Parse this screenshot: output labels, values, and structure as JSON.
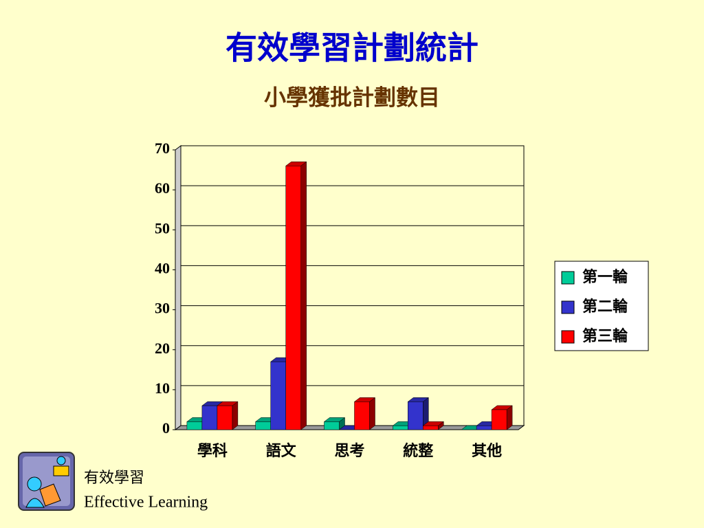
{
  "chart_data": {
    "type": "bar3d",
    "title": "有效學習計劃統計",
    "subtitle": "小學獲批計劃數目",
    "categories": [
      "學科",
      "語文",
      "思考",
      "統整",
      "其他"
    ],
    "series": [
      {
        "name": "第一輪",
        "color": "#00cc99",
        "values": [
          2,
          2,
          2,
          1,
          0
        ]
      },
      {
        "name": "第二輪",
        "color": "#3333cc",
        "values": [
          6,
          17,
          0,
          7,
          1
        ]
      },
      {
        "name": "第三輪",
        "color": "#ff0000",
        "values": [
          6,
          66,
          7,
          1,
          5
        ]
      }
    ],
    "ylim": [
      0,
      70
    ],
    "yticks": [
      0,
      10,
      20,
      30,
      40,
      50,
      60,
      70
    ],
    "grid": true,
    "legend": "right"
  },
  "footer": {
    "label": "有效學習",
    "label_en": "Effective Learning"
  }
}
